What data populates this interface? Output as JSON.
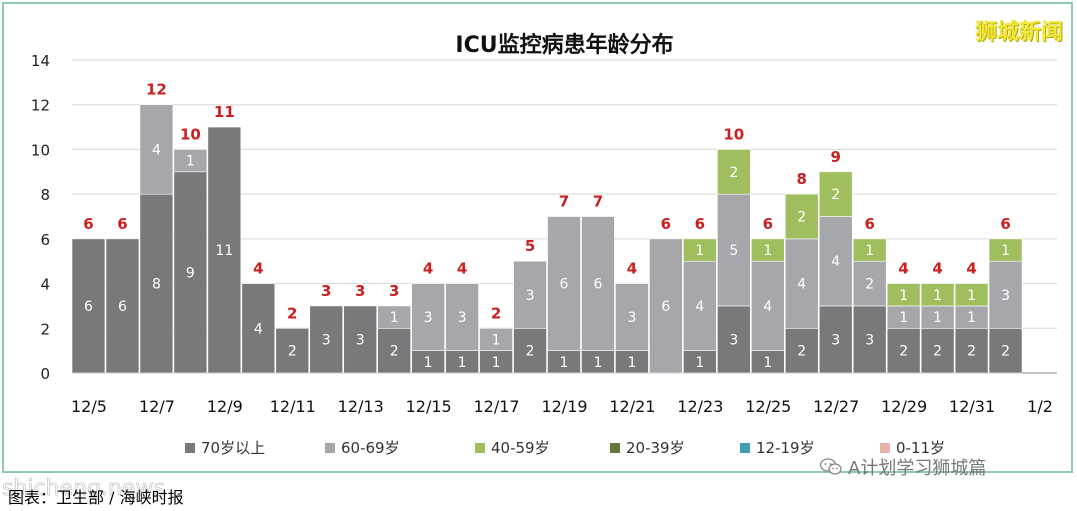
{
  "chart_data": {
    "type": "bar",
    "stacked": true,
    "title": "ICU监控病患年龄分布",
    "ylim": [
      0,
      14
    ],
    "yticks": [
      0,
      2,
      4,
      6,
      8,
      10,
      12,
      14
    ],
    "grid": true,
    "legend_position": "bottom",
    "x_tick_labels": [
      "12/5",
      "12/7",
      "12/9",
      "12/11",
      "12/13",
      "12/15",
      "12/17",
      "12/19",
      "12/21",
      "12/23",
      "12/25",
      "12/27",
      "12/29",
      "12/31",
      "1/2"
    ],
    "categories": [
      "12/5",
      "12/6",
      "12/7",
      "12/8",
      "12/9",
      "12/10",
      "12/11",
      "12/12",
      "12/13",
      "12/14",
      "12/15",
      "12/16",
      "12/17",
      "12/18",
      "12/19",
      "12/20",
      "12/21",
      "12/22",
      "12/23",
      "12/24",
      "12/25",
      "12/26",
      "12/27",
      "12/28",
      "12/29",
      "12/30",
      "12/31",
      "1/1",
      "1/2"
    ],
    "series": [
      {
        "name": "70岁以上",
        "color": "#78797b",
        "values": [
          6,
          6,
          8,
          9,
          11,
          4,
          2,
          3,
          3,
          2,
          1,
          1,
          1,
          2,
          1,
          1,
          1,
          0,
          1,
          3,
          1,
          2,
          3,
          3,
          2,
          2,
          2,
          2,
          0
        ]
      },
      {
        "name": "60-69岁",
        "color": "#a6a7ab",
        "values": [
          0,
          0,
          4,
          1,
          0,
          0,
          0,
          0,
          0,
          1,
          3,
          3,
          1,
          3,
          6,
          6,
          3,
          6,
          4,
          5,
          4,
          4,
          4,
          2,
          1,
          1,
          1,
          3,
          0
        ]
      },
      {
        "name": "40-59岁",
        "color": "#9fbf5f",
        "values": [
          0,
          0,
          0,
          0,
          0,
          0,
          0,
          0,
          0,
          0,
          0,
          0,
          0,
          0,
          0,
          0,
          0,
          0,
          1,
          2,
          1,
          2,
          2,
          1,
          1,
          1,
          1,
          1,
          0
        ]
      },
      {
        "name": "20-39岁",
        "color": "#5f7a3a",
        "values": [
          0,
          0,
          0,
          0,
          0,
          0,
          0,
          0,
          0,
          0,
          0,
          0,
          0,
          0,
          0,
          0,
          0,
          0,
          0,
          0,
          0,
          0,
          0,
          0,
          0,
          0,
          0,
          0,
          0
        ]
      },
      {
        "name": "12-19岁",
        "color": "#3f9fb0",
        "values": [
          0,
          0,
          0,
          0,
          0,
          0,
          0,
          0,
          0,
          0,
          0,
          0,
          0,
          0,
          0,
          0,
          0,
          0,
          0,
          0,
          0,
          0,
          0,
          0,
          0,
          0,
          0,
          0,
          0
        ]
      },
      {
        "name": "0-11岁",
        "color": "#e8b0a8",
        "values": [
          0,
          0,
          0,
          0,
          0,
          0,
          0,
          0,
          0,
          0,
          0,
          0,
          0,
          0,
          0,
          0,
          0,
          0,
          0,
          0,
          0,
          0,
          0,
          0,
          0,
          0,
          0,
          0,
          0
        ]
      }
    ],
    "totals": [
      6,
      6,
      12,
      10,
      11,
      4,
      2,
      3,
      3,
      3,
      4,
      4,
      2,
      5,
      7,
      7,
      4,
      6,
      6,
      10,
      6,
      8,
      9,
      6,
      4,
      4,
      4,
      6,
      null
    ],
    "total_color": "#cc1f1f"
  },
  "watermark": "狮城新闻",
  "caption": "图表：卫生部 / 海峡时报",
  "site_mark": "shicheng.news",
  "account": "A计划学习狮城篇"
}
